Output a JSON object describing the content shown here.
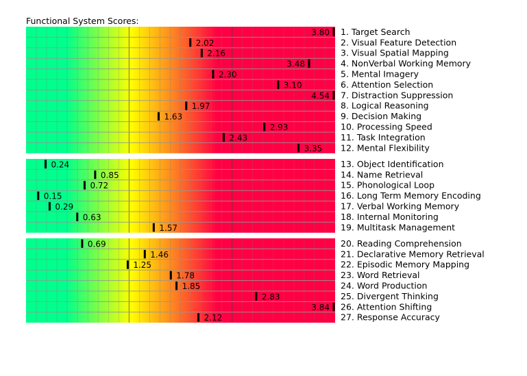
{
  "chart_data": {
    "type": "bar",
    "title": "Functional System Scores:",
    "xlim": [
      0,
      3.8
    ],
    "colors": {
      "low": "#00ff8c",
      "mid": "#ffff00",
      "high": "#ff0044",
      "marker": "#000000"
    },
    "groups": [
      {
        "rows": [
          {
            "label": "1. Target Search",
            "value": 3.8,
            "value_label": "3.80"
          },
          {
            "label": "2. Visual Feature Detection",
            "value": 2.02,
            "value_label": "2.02"
          },
          {
            "label": "3. Visual Spatial Mapping",
            "value": 2.16,
            "value_label": "2.16"
          },
          {
            "label": "4. NonVerbal Working Memory",
            "value": 3.48,
            "value_label": "3.48"
          },
          {
            "label": "5. Mental Imagery",
            "value": 2.3,
            "value_label": "2.30"
          },
          {
            "label": "6. Attention Selection",
            "value": 3.1,
            "value_label": "3.10"
          },
          {
            "label": "7. Distraction Suppression",
            "value": 4.54,
            "value_label": "4.54"
          },
          {
            "label": "8. Logical Reasoning",
            "value": 1.97,
            "value_label": "1.97"
          },
          {
            "label": "9. Decision Making",
            "value": 1.63,
            "value_label": "1.63"
          },
          {
            "label": "10. Processing Speed",
            "value": 2.93,
            "value_label": "2.93"
          },
          {
            "label": "11. Task Integration",
            "value": 2.43,
            "value_label": "2.43"
          },
          {
            "label": "12. Mental Flexibility",
            "value": 3.35,
            "value_label": "3.35"
          }
        ]
      },
      {
        "rows": [
          {
            "label": "13. Object Identification",
            "value": 0.24,
            "value_label": "0.24"
          },
          {
            "label": "14. Name Retrieval",
            "value": 0.85,
            "value_label": "0.85"
          },
          {
            "label": "15. Phonological Loop",
            "value": 0.72,
            "value_label": "0.72"
          },
          {
            "label": "16. Long Term Memory Encoding",
            "value": 0.15,
            "value_label": "0.15"
          },
          {
            "label": "17. Verbal Working Memory",
            "value": 0.29,
            "value_label": "0.29"
          },
          {
            "label": "18. Internal Monitoring",
            "value": 0.63,
            "value_label": "0.63"
          },
          {
            "label": "19. Multitask Management",
            "value": 1.57,
            "value_label": "1.57"
          }
        ]
      },
      {
        "rows": [
          {
            "label": "20. Reading Comprehension",
            "value": 0.69,
            "value_label": "0.69"
          },
          {
            "label": "21. Declarative Memory Retrieval",
            "value": 1.46,
            "value_label": "1.46"
          },
          {
            "label": "22. Episodic Memory Mapping",
            "value": 1.25,
            "value_label": "1.25"
          },
          {
            "label": "23. Word Retrieval",
            "value": 1.78,
            "value_label": "1.78"
          },
          {
            "label": "24. Word Production",
            "value": 1.85,
            "value_label": "1.85"
          },
          {
            "label": "25. Divergent Thinking",
            "value": 2.83,
            "value_label": "2.83"
          },
          {
            "label": "26. Attention Shifting",
            "value": 3.84,
            "value_label": "3.84"
          },
          {
            "label": "27. Response Accuracy",
            "value": 2.12,
            "value_label": "2.12"
          }
        ]
      }
    ]
  }
}
